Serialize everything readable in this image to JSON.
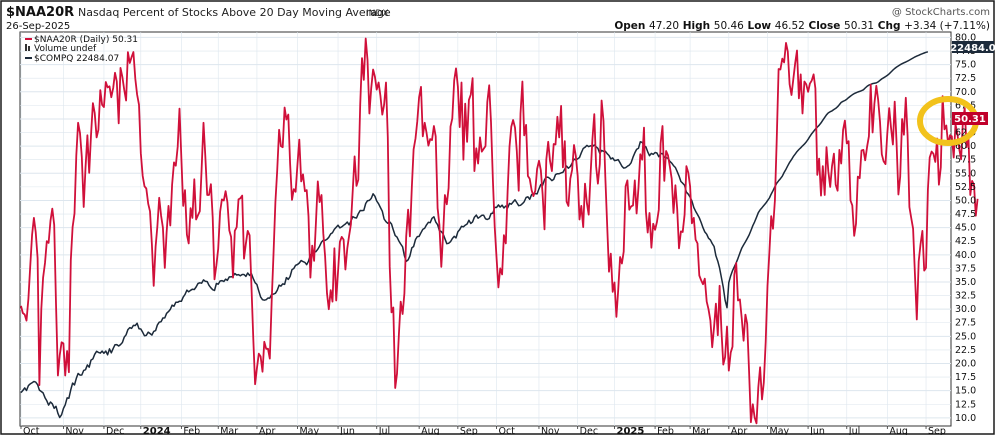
{
  "header": {
    "symbol": "$NAA20R",
    "description": "Nasdaq Percent of Stocks Above 20 Day Moving Average",
    "exchange": "INDX",
    "copyright": "@ StockCharts.com",
    "date": "26-Sep-2025",
    "ohlc": {
      "open_label": "Open",
      "open": "47.20",
      "high_label": "High",
      "high": "50.46",
      "low_label": "Low",
      "low": "46.52",
      "close_label": "Close",
      "close": "50.31",
      "chg_label": "Chg",
      "chg": "+3.34 (+7.11%)"
    }
  },
  "legend": [
    {
      "text": "$NAA20R (Daily) 50.31",
      "color": "#d0103a"
    },
    {
      "text": "Volume undef",
      "color": "#333333"
    },
    {
      "text": "$COMPQ 22484.07",
      "color": "#1c2a3a"
    }
  ],
  "price_labels": {
    "naa20r": "50.31",
    "compq": "22484.0"
  },
  "colors": {
    "naa20r": "#d0103a",
    "compq": "#1c2a3a",
    "highlight": "#f2c21b",
    "tag_bg": "#c0002b",
    "grid": "#dde6ee",
    "axis_text": "#111111"
  },
  "chart_data": {
    "type": "line",
    "title": "$NAA20R Nasdaq Percent of Stocks Above 20 Day Moving Average INDX",
    "ylim": [
      8.5,
      81
    ],
    "y_ticks": [
      "10.0",
      "12.5",
      "15.0",
      "17.5",
      "20.0",
      "22.5",
      "25.0",
      "27.5",
      "30.0",
      "32.5",
      "35.0",
      "37.5",
      "40.0",
      "42.5",
      "45.0",
      "47.5",
      "50.0",
      "52.5",
      "55.0",
      "57.5",
      "60.0",
      "62.5",
      "65.0",
      "67.5",
      "70.0",
      "72.5",
      "75.0",
      "77.5",
      "80.0"
    ],
    "x_ticks": [
      "Oct",
      "Nov",
      "Dec",
      "2024",
      "Feb",
      "Mar",
      "Apr",
      "May",
      "Jun",
      "Jul",
      "Aug",
      "Sep",
      "Oct",
      "Nov",
      "Dec",
      "2025",
      "Feb",
      "Mar",
      "Apr",
      "May",
      "Jun",
      "Jul",
      "Aug",
      "Sep"
    ],
    "x_tick_index": [
      0,
      23,
      45,
      65,
      87,
      107,
      128,
      150,
      172,
      193,
      216,
      237,
      258,
      281,
      302,
      322,
      344,
      363,
      384,
      405,
      427,
      448,
      470,
      491
    ],
    "n_points": 505,
    "series": [
      {
        "name": "$NAA20R (Daily)",
        "color": "#d0103a",
        "values": [
          30.6,
          29.3,
          29.0,
          27.9,
          31.9,
          37.8,
          43.7,
          46.8,
          44.2,
          39.4,
          16.0,
          30.0,
          35.8,
          38.5,
          42.5,
          42.2,
          46.3,
          48.5,
          45.5,
          31.0,
          17.8,
          21.5,
          23.9,
          23.7,
          17.8,
          22.3,
          18.4,
          39.0,
          45.1,
          47.6,
          58.3,
          64.3,
          62.4,
          58.0,
          48.8,
          56.0,
          62.0,
          55.1,
          62.0,
          67.9,
          66.1,
          61.6,
          63.0,
          70.3,
          67.6,
          67.2,
          71.8,
          70.8,
          71.0,
          69.0,
          70.7,
          73.5,
          71.9,
          64.2,
          74.4,
          72.7,
          70.4,
          68.4,
          77.3,
          75.3,
          76.4,
          77.3,
          72.4,
          69.5,
          67.6,
          58.7,
          54.5,
          52.6,
          52.2,
          49.4,
          48.0,
          41.9,
          34.3,
          41.5,
          45.3,
          50.5,
          47.2,
          45.0,
          37.6,
          44.1,
          49.0,
          45.4,
          52.9,
          57.0,
          56.4,
          59.9,
          66.9,
          57.6,
          49.0,
          51.9,
          43.7,
          42.1,
          48.6,
          46.8,
          53.9,
          46.5,
          47.3,
          48.0,
          55.7,
          64.3,
          58.2,
          51.0,
          51.0,
          53.0,
          46.9,
          35.5,
          38.1,
          41.1,
          47.9,
          50.2,
          50.0,
          51.7,
          49.7,
          44.5,
          43.3,
          35.8,
          44.4,
          45.1,
          50.2,
          50.4,
          50.9,
          39.3,
          42.1,
          44.4,
          43.6,
          34.5,
          24.5,
          16.2,
          19.1,
          21.8,
          21.3,
          18.5,
          24.0,
          22.7,
          22.7,
          20.9,
          31.6,
          40.1,
          49.7,
          55.5,
          63.0,
          60.0,
          59.8,
          67.1,
          64.9,
          65.8,
          56.8,
          50.1,
          52.1,
          51.6,
          56.7,
          61.2,
          53.5,
          54.8,
          51.7,
          51.9,
          47.1,
          35.8,
          41.7,
          38.9,
          45.8,
          53.5,
          49.7,
          51.0,
          43.9,
          39.7,
          32.9,
          30.0,
          33.5,
          31.4,
          41.2,
          31.6,
          36.8,
          42.4,
          43.3,
          42.8,
          37.3,
          41.2,
          43.5,
          45.6,
          52.0,
          58.1,
          52.7,
          53.8,
          67.6,
          76.2,
          72.2,
          79.8,
          75.9,
          66.0,
          70.6,
          74.1,
          72.8,
          70.4,
          71.7,
          69.3,
          65.8,
          67.6,
          71.7,
          61.6,
          37.9,
          29.4,
          30.3,
          15.5,
          18.1,
          25.4,
          31.4,
          29.1,
          32.9,
          43.4,
          48.3,
          43.4,
          52.3,
          59.4,
          61.4,
          64.6,
          69.0,
          70.9,
          61.8,
          64.3,
          62.5,
          60.1,
          61.3,
          61.1,
          63.7,
          61.8,
          48.6,
          45.5,
          37.8,
          43.7,
          51.0,
          49.3,
          52.3,
          63.6,
          65.1,
          72.1,
          74.3,
          70.9,
          63.5,
          71.7,
          57.5,
          67.8,
          60.8,
          68.5,
          69.5,
          72.5,
          55.4,
          59.6,
          56.8,
          61.6,
          59.0,
          59.5,
          60.0,
          68.1,
          71.2,
          64.4,
          53.7,
          45.2,
          39.3,
          34.0,
          37.5,
          36.4,
          43.6,
          42.1,
          51.6,
          59.9,
          63.6,
          64.8,
          63.4,
          59.1,
          51.8,
          66.0,
          71.9,
          62.0,
          63.9,
          54.5,
          54.0,
          51.9,
          50.8,
          51.8,
          55.8,
          57.3,
          55.6,
          51.2,
          44.7,
          57.5,
          60.8,
          57.3,
          55.4,
          60.4,
          60.3,
          65.4,
          61.6,
          67.4,
          56.1,
          60.9,
          49.8,
          49.0,
          54.0,
          55.6,
          60.2,
          58.2,
          54.5,
          46.5,
          49.0,
          45.1,
          53.1,
          49.5,
          47.4,
          54.9,
          61.2,
          65.9,
          56.3,
          53.1,
          56.7,
          68.4,
          64.6,
          54.4,
          45.3,
          36.9,
          40.2,
          33.2,
          34.9,
          28.6,
          33.5,
          39.6,
          38.4,
          40.6,
          52.6,
          53.7,
          48.3,
          48.9,
          49.1,
          53.7,
          47.6,
          52.4,
          58.5,
          57.5,
          63.4,
          48.0,
          44.1,
          47.7,
          41.3,
          45.7,
          44.6,
          46.0,
          48.3,
          60.5,
          63.7,
          53.6,
          59.1,
          58.3,
          56.3,
          54.0,
          47.7,
          52.8,
          48.4,
          41.2,
          44.3,
          44.2,
          47.4,
          56.3,
          55.1,
          52.6,
          45.8,
          46.8,
          42.8,
          42.1,
          36.2,
          35.3,
          34.6,
          35.6,
          31.4,
          30.0,
          27.9,
          23.0,
          26.8,
          31.0,
          25.2,
          34.3,
          26.2,
          19.8,
          21.2,
          26.8,
          18.7,
          22.0,
          23.1,
          36.3,
          38.5,
          31.6,
          31.8,
          28.4,
          24.2,
          29.0,
          27.3,
          18.4,
          9.2,
          12.5,
          10.1,
          9.0,
          15.6,
          19.3,
          13.4,
          16.5,
          24.0,
          34.3,
          40.5,
          47.1,
          44.8,
          50.0,
          61.0,
          74.2,
          74.1,
          76.1,
          75.4,
          79.0,
          77.4,
          71.4,
          69.4,
          72.3,
          75.3,
          77.6,
          68.8,
          73.2,
          66.0,
          71.9,
          71.4,
          70.0,
          71.5,
          72.1,
          73.2,
          70.6,
          54.7,
          57.7,
          50.9,
          56.3,
          51.0,
          59.8,
          55.4,
          52.5,
          56.3,
          58.6,
          52.9,
          51.8,
          59.3,
          56.8,
          63.0,
          64.7,
          60.5,
          60.9,
          50.0,
          49.1,
          43.5,
          45.7,
          54.4,
          54.1,
          59.2,
          59.3,
          57.4,
          59.9,
          61.8,
          71.3,
          62.5,
          67.8,
          71.1,
          68.6,
          64.5,
          58.5,
          57.2,
          56.7,
          62.3,
          67.0,
          63.4,
          60.3,
          68.2,
          60.9,
          51.1,
          54.4,
          65.0,
          62.1,
          68.9,
          61.9,
          48.8,
          46.7,
          44.8,
          36.1,
          28.1,
          38.8,
          41.9,
          44.4,
          37.1,
          37.6,
          52.0,
          57.9,
          59.0,
          58.6,
          57.1,
          61.4,
          52.9,
          56.1,
          69.2,
          63.1,
          63.8,
          60.2,
          62.0,
          61.8,
          57.9,
          64.0,
          62.3,
          59.5,
          57.6,
          64.6,
          67.0,
          59.8,
          62.0,
          51.0,
          53.6,
          52.9,
          47.2,
          50.3
        ]
      },
      {
        "name": "$COMPQ",
        "color": "#1c2a3a",
        "values": [
          13200,
          13259,
          13329,
          13259,
          13392,
          13437,
          13470,
          13503,
          13487,
          13415,
          13269,
          13230,
          13193,
          13063,
          12978,
          12860,
          12944,
          12895,
          12774,
          12828,
          12637,
          12522,
          12599,
          12764,
          12866,
          13057,
          13049,
          13280,
          13460,
          13410,
          13588,
          13720,
          13677,
          13681,
          13805,
          13825,
          13954,
          13893,
          14085,
          14120,
          14245,
          14327,
          14295,
          14277,
          14330,
          14271,
          14331,
          14230,
          14392,
          14286,
          14405,
          14506,
          14509,
          14471,
          14508,
          14564,
          14711,
          14775,
          14918,
          14971,
          14949,
          15031,
          15029,
          15092,
          14938,
          14932,
          14844,
          14749,
          14760,
          14848,
          14811,
          14766,
          14869,
          14890,
          15045,
          15119,
          15131,
          15232,
          15236,
          15361,
          15406,
          15468,
          15581,
          15554,
          15659,
          15659,
          15690,
          15687,
          15801,
          15873,
          15991,
          15946,
          15986,
          16018,
          16010,
          16076,
          16173,
          16191,
          16181,
          16269,
          16233,
          16223,
          16124,
          16056,
          16004,
          15983,
          16173,
          16152,
          16241,
          16252,
          16227,
          16289,
          16259,
          16353,
          16351,
          16371,
          16444,
          16403,
          16415,
          16383,
          16417,
          16418,
          16367,
          16457,
          16393,
          16443,
          16303,
          16195,
          16146,
          15965,
          15807,
          15731,
          15718,
          15730,
          15778,
          15775,
          15877,
          15883,
          15905,
          15984,
          16127,
          16101,
          16162,
          16149,
          16333,
          16285,
          16362,
          16551,
          16581,
          16668,
          16689,
          16730,
          16799,
          16769,
          16747,
          16685,
          16779,
          16946,
          16979,
          17043,
          17039,
          17107,
          17191,
          17299,
          17352,
          17345,
          17380,
          17432,
          17522,
          17556,
          17652,
          17705,
          17761,
          17688,
          17713,
          17757,
          17794,
          17848,
          17769,
          17870,
          17995,
          17966,
          17955,
          18074,
          18160,
          18159,
          18163,
          18351,
          18428,
          18436,
          18487,
          18616,
          18551,
          18418,
          18342,
          18242,
          18141,
          17930,
          17856,
          17812,
          17849,
          17794,
          17632,
          17478,
          17436,
          17328,
          17249,
          17173,
          16926,
          16773,
          16815,
          16920,
          17143,
          17180,
          17370,
          17451,
          17455,
          17557,
          17645,
          17678,
          17769,
          17839,
          17829,
          17949,
          17990,
          17851,
          17773,
          17614,
          17587,
          17524,
          17393,
          17255,
          17266,
          17311,
          17394,
          17458,
          17414,
          17584,
          17641,
          17730,
          17717,
          17761,
          17793,
          17894,
          17806,
          17851,
          17979,
          18034,
          17952,
          17989,
          18031,
          18031,
          17935,
          17916,
          17941,
          18076,
          18089,
          18245,
          18246,
          18313,
          18252,
          18304,
          18230,
          18282,
          18231,
          18355,
          18331,
          18393,
          18453,
          18375,
          18291,
          18301,
          18345,
          18399,
          18516,
          18534,
          18465,
          18593,
          18620,
          18620,
          18612,
          18751,
          18868,
          18846,
          18996,
          19069,
          19065,
          19030,
          18975,
          19008,
          19139,
          19164,
          19164,
          19184,
          19198,
          19290,
          19369,
          19312,
          19360,
          19448,
          19560,
          19538,
          19568,
          19603,
          19732,
          19850,
          19883,
          19934,
          19901,
          19923,
          19903,
          19944,
          19896,
          19855,
          19714,
          19797,
          19773,
          19777,
          19708,
          19659,
          19567,
          19593,
          19521,
          19527,
          19546,
          19458,
          19366,
          19315,
          19327,
          19364,
          19397,
          19459,
          19611,
          19729,
          19824,
          19857,
          20031,
          20016,
          19924,
          19892,
          19759,
          19654,
          19716,
          19689,
          19741,
          19728,
          19626,
          19709,
          19714,
          19614,
          19599,
          19583,
          19501,
          19451,
          19384,
          19331,
          19219,
          19102,
          18950,
          18903,
          18847,
          18659,
          18604,
          18526,
          18420,
          18243,
          18142,
          18053,
          17961,
          17830,
          17692,
          17577,
          17515,
          17406,
          17360,
          17261,
          17181,
          16927,
          16779,
          16591,
          16336,
          16064,
          15718,
          15514,
          16198,
          16385,
          16520,
          16626,
          16736,
          16860,
          17003,
          17130,
          17223,
          17305,
          17395,
          17494,
          17612,
          17746,
          17851,
          17976,
          18102,
          18177,
          18238,
          18298,
          18357,
          18427,
          18502,
          18606,
          18701,
          18810,
          18902,
          18970,
          19027,
          19096,
          19195,
          19286,
          19382,
          19472,
          19546,
          19630,
          19697,
          19764,
          19822,
          19867,
          19919,
          19969,
          20026,
          20101,
          20180,
          20254,
          20315,
          20377,
          20432,
          20482,
          20546,
          20620,
          20695,
          20766,
          20820,
          20852,
          20873,
          20911,
          20941,
          20989,
          21045,
          21106,
          21136,
          21156,
          21191,
          21235,
          21277,
          21313,
          21345,
          21366,
          21387,
          21405,
          21424,
          21448,
          21496,
          21543,
          21575,
          21595,
          21616,
          21628,
          21637,
          21662,
          21708,
          21746,
          21774,
          21807,
          21840,
          21884,
          21934,
          21984,
          22029,
          22066,
          22100,
          22132,
          22158,
          22183,
          22206,
          22231,
          22257,
          22286,
          22315,
          22343,
          22367,
          22388,
          22412,
          22432,
          22451,
          22470,
          22484
        ]
      }
    ]
  }
}
